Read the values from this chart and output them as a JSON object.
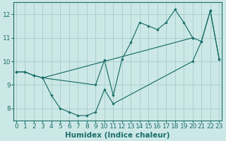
{
  "bg_color": "#cce8e6",
  "grid_color": "#aad0ce",
  "line_color": "#1a6e6a",
  "curve1_x": [
    0,
    1,
    2,
    3,
    9,
    10,
    11,
    12,
    13,
    14,
    15,
    16,
    17,
    18,
    19,
    20
  ],
  "curve1_y": [
    9.55,
    9.55,
    9.4,
    9.3,
    9.0,
    10.05,
    8.55,
    10.1,
    10.8,
    11.65,
    11.5,
    11.35,
    11.65,
    12.2,
    11.65,
    11.0
  ],
  "curve2_x": [
    0,
    1,
    2,
    3,
    20,
    21,
    22,
    23
  ],
  "curve2_y": [
    9.55,
    9.55,
    9.4,
    9.3,
    11.0,
    10.85,
    12.15,
    10.1
  ],
  "curve3_x": [
    3,
    4,
    5,
    6,
    7,
    8,
    9,
    10,
    11,
    20,
    21,
    22,
    23
  ],
  "curve3_y": [
    9.3,
    8.55,
    8.0,
    7.85,
    7.7,
    7.7,
    7.85,
    8.8,
    8.2,
    10.0,
    10.85,
    12.15,
    10.1
  ],
  "xlabel": "Humidex (Indice chaleur)",
  "xlim": [
    -0.3,
    23.3
  ],
  "ylim": [
    7.5,
    12.5
  ],
  "xticks": [
    0,
    1,
    2,
    3,
    4,
    5,
    6,
    7,
    8,
    9,
    10,
    11,
    12,
    13,
    14,
    15,
    16,
    17,
    18,
    19,
    20,
    21,
    22,
    23
  ],
  "yticks": [
    8,
    9,
    10,
    11,
    12
  ],
  "xlabel_fontsize": 7.5,
  "tick_fontsize": 6.5
}
